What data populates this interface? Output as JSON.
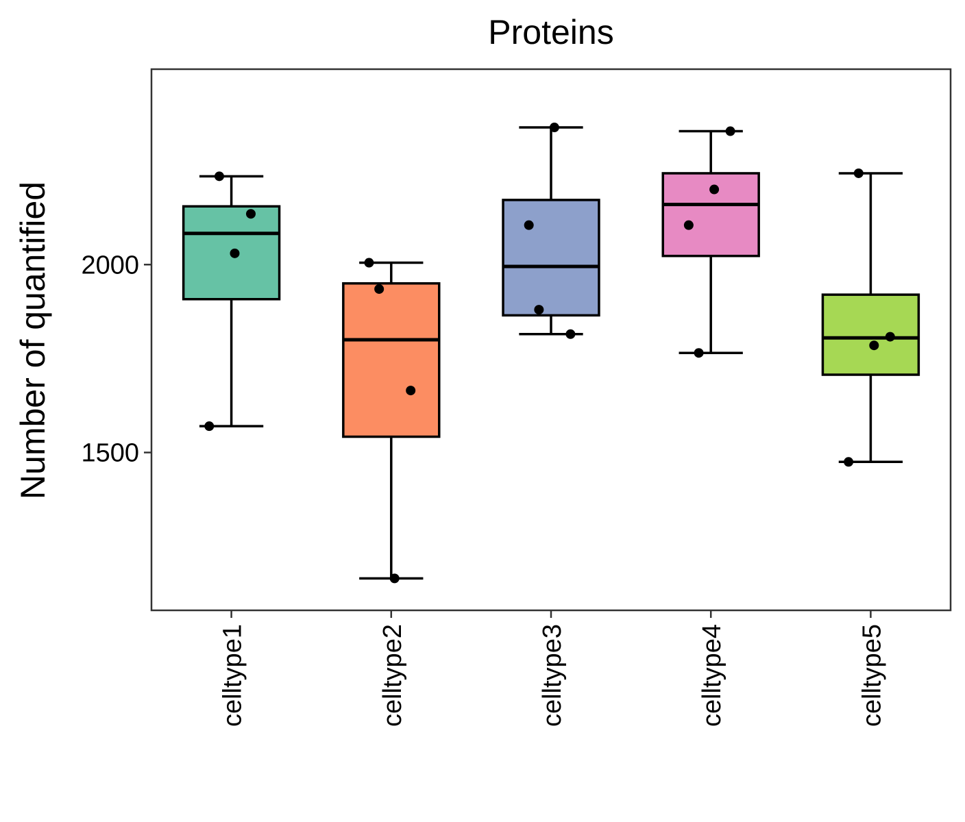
{
  "chart_data": {
    "type": "box",
    "title": "Proteins",
    "xlabel": "",
    "ylabel": "Number of quantified",
    "ylim": [
      1080,
      2520
    ],
    "y_ticks": [
      1500,
      2000
    ],
    "grid": false,
    "legend": "none",
    "categories": [
      "celltype1",
      "celltype2",
      "celltype3",
      "celltype4",
      "celltype5"
    ],
    "boxes": [
      {
        "category": "celltype1",
        "whisker_low": 1570,
        "q1": 1908,
        "median": 2083,
        "q3": 2155,
        "whisker_high": 2235,
        "color": "#66c2a5"
      },
      {
        "category": "celltype2",
        "whisker_low": 1165,
        "q1": 1542,
        "median": 1800,
        "q3": 1950,
        "whisker_high": 2005,
        "color": "#fc8d62"
      },
      {
        "category": "celltype3",
        "whisker_low": 1815,
        "q1": 1865,
        "median": 1995,
        "q3": 2172,
        "whisker_high": 2365,
        "color": "#8da0cb"
      },
      {
        "category": "celltype4",
        "whisker_low": 1765,
        "q1": 2023,
        "median": 2160,
        "q3": 2243,
        "whisker_high": 2355,
        "color": "#e78ac3"
      },
      {
        "category": "celltype5",
        "whisker_low": 1475,
        "q1": 1707,
        "median": 1805,
        "q3": 1920,
        "whisker_high": 2243,
        "color": "#a6d854"
      }
    ],
    "points": [
      {
        "category": "celltype1",
        "values": [
          1570,
          2030,
          2135,
          2235
        ]
      },
      {
        "category": "celltype2",
        "values": [
          1165,
          1665,
          1935,
          2005
        ]
      },
      {
        "category": "celltype3",
        "values": [
          1815,
          1880,
          2105,
          2365
        ]
      },
      {
        "category": "celltype4",
        "values": [
          1765,
          2105,
          2200,
          2355
        ]
      },
      {
        "category": "celltype5",
        "values": [
          1475,
          1785,
          1808,
          2243
        ]
      }
    ]
  }
}
